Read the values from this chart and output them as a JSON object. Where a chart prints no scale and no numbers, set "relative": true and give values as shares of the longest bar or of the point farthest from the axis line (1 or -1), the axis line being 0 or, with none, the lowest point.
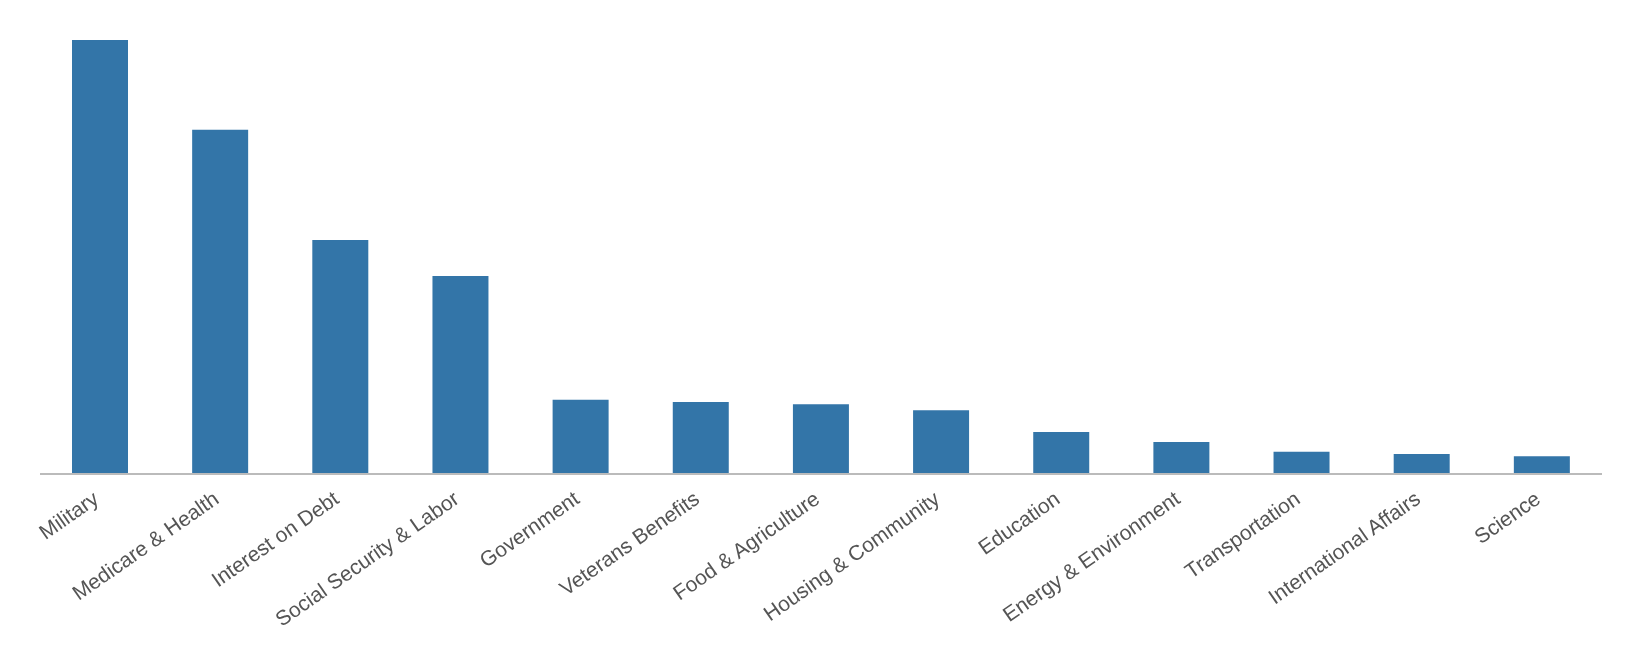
{
  "chart_data": {
    "type": "bar",
    "relative": true,
    "categories": [
      "Military",
      "Medicare & Health",
      "Interest on Debt",
      "Social Security & Labor",
      "Government",
      "Veterans Benefits",
      "Food & Agriculture",
      "Housing & Community",
      "Education",
      "Energy & Environment",
      "Transportation",
      "International Affairs",
      "Science"
    ],
    "values": [
      1,
      0.793,
      0.539,
      0.456,
      0.171,
      0.166,
      0.161,
      0.147,
      0.097,
      0.074,
      0.051,
      0.046,
      0.041
    ],
    "color": "#3375a8",
    "grid": false,
    "legend": false
  }
}
